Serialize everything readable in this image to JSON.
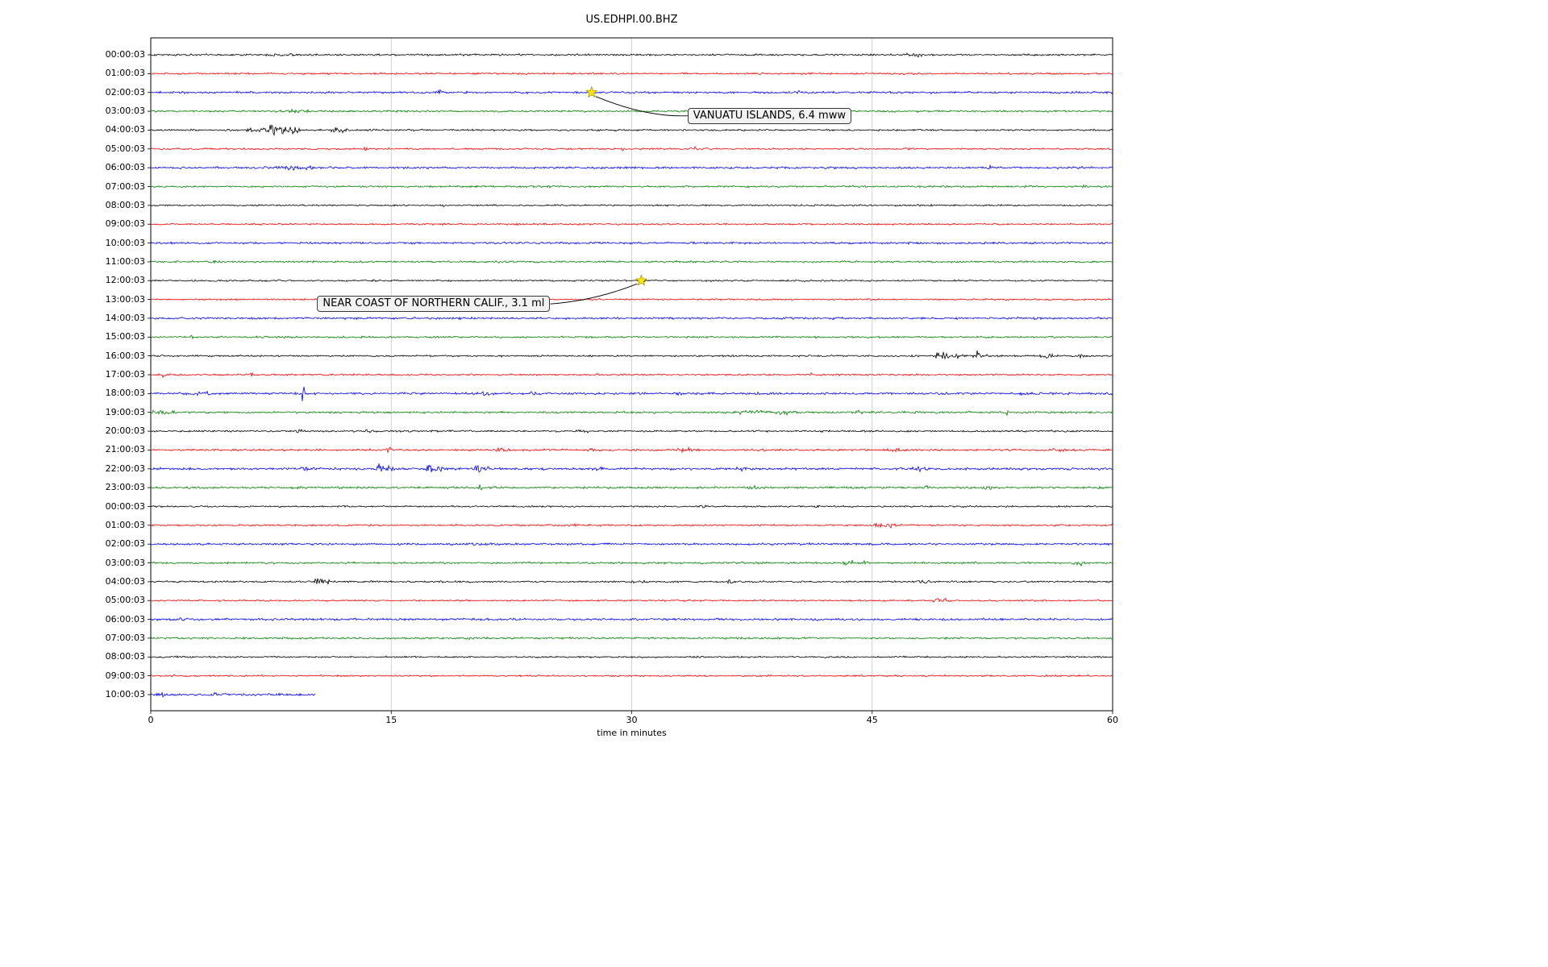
{
  "chart_data": {
    "type": "line",
    "subtype": "seismogram-helicorder",
    "title": "US.EDHPI.00.BHZ",
    "xlabel": "time in minutes",
    "xlim": [
      0,
      60
    ],
    "x_tick_values": [
      0,
      15,
      30,
      45,
      60
    ],
    "x_tick_labels": [
      "0",
      "15",
      "30",
      "45",
      "60"
    ],
    "grid": true,
    "trace_color_cycle": [
      "#000000",
      "#ff0000",
      "#0000ff",
      "#008000"
    ],
    "event_marker_color": "#ffe600",
    "rows": [
      {
        "label": "00:00:03",
        "color": "#000000",
        "base": 1.6,
        "bursts": [
          [
            8,
            1.2,
            1.2
          ],
          [
            35.2,
            0.12,
            2.5
          ],
          [
            47.7,
            0.6,
            2.2
          ]
        ]
      },
      {
        "label": "01:00:03",
        "color": "#ff0000",
        "base": 1.5,
        "bursts": [
          [
            56.2,
            0.15,
            2
          ]
        ]
      },
      {
        "label": "02:00:03",
        "color": "#0000ff",
        "base": 1.8,
        "bursts": [
          [
            18,
            0.2,
            2.5
          ],
          [
            27.6,
            0.2,
            1.5
          ],
          [
            40.3,
            0.12,
            3
          ]
        ]
      },
      {
        "label": "03:00:03",
        "color": "#008000",
        "base": 1.6,
        "bursts": [
          [
            8.8,
            0.5,
            2.5
          ],
          [
            9.6,
            0.3,
            2
          ],
          [
            21.8,
            0.15,
            2
          ]
        ]
      },
      {
        "label": "04:00:03",
        "color": "#000000",
        "base": 1.5,
        "bursts": [
          [
            6.2,
            0.3,
            3
          ],
          [
            7.5,
            0.5,
            10
          ],
          [
            8.2,
            0.3,
            8
          ],
          [
            9,
            0.4,
            6
          ],
          [
            11.5,
            0.25,
            10
          ],
          [
            12.1,
            0.2,
            5
          ],
          [
            13.8,
            0.2,
            3
          ]
        ]
      },
      {
        "label": "05:00:03",
        "color": "#ff0000",
        "base": 1.4,
        "bursts": [
          [
            13.4,
            0.12,
            3.5
          ],
          [
            29.5,
            0.12,
            2.5
          ],
          [
            34,
            0.15,
            2
          ],
          [
            47.2,
            0.2,
            2
          ]
        ]
      },
      {
        "label": "06:00:03",
        "color": "#0000ff",
        "base": 1.8,
        "bursts": [
          [
            8.6,
            0.6,
            3.2
          ],
          [
            9.7,
            0.35,
            2.8
          ],
          [
            52.3,
            0.25,
            2
          ]
        ]
      },
      {
        "label": "07:00:03",
        "color": "#008000",
        "base": 1.6,
        "bursts": [
          [
            22.2,
            0.2,
            1.8
          ],
          [
            58.3,
            0.15,
            2.5
          ]
        ]
      },
      {
        "label": "08:00:03",
        "color": "#000000",
        "base": 1.4,
        "bursts": [
          [
            18.2,
            0.15,
            1.8
          ]
        ]
      },
      {
        "label": "09:00:03",
        "color": "#ff0000",
        "base": 1.4,
        "bursts": []
      },
      {
        "label": "10:00:03",
        "color": "#0000ff",
        "base": 1.8,
        "bursts": []
      },
      {
        "label": "11:00:03",
        "color": "#008000",
        "base": 1.6,
        "bursts": [
          [
            4,
            0.2,
            1.8
          ]
        ]
      },
      {
        "label": "12:00:03",
        "color": "#000000",
        "base": 1.4,
        "bursts": [
          [
            30.7,
            0.15,
            1.8
          ]
        ]
      },
      {
        "label": "13:00:03",
        "color": "#ff0000",
        "base": 1.4,
        "bursts": []
      },
      {
        "label": "14:00:03",
        "color": "#0000ff",
        "base": 1.8,
        "bursts": []
      },
      {
        "label": "15:00:03",
        "color": "#008000",
        "base": 1.6,
        "bursts": [
          [
            2.5,
            0.2,
            1.8
          ]
        ]
      },
      {
        "label": "16:00:03",
        "color": "#000000",
        "base": 1.5,
        "bursts": [
          [
            22,
            0.2,
            2
          ],
          [
            49.3,
            0.35,
            8
          ],
          [
            50.2,
            0.5,
            4
          ],
          [
            51.6,
            0.3,
            8
          ],
          [
            52.2,
            0.2,
            4
          ],
          [
            55.9,
            0.4,
            2.5
          ],
          [
            58,
            0.3,
            2
          ]
        ]
      },
      {
        "label": "17:00:03",
        "color": "#ff0000",
        "base": 1.5,
        "bursts": [
          [
            0.8,
            0.15,
            4
          ],
          [
            6.3,
            0.15,
            2
          ],
          [
            27.9,
            0.12,
            3.5
          ],
          [
            41.2,
            0.15,
            2
          ]
        ]
      },
      {
        "label": "18:00:03",
        "color": "#0000ff",
        "base": 1.9,
        "bursts": [
          [
            3.2,
            0.5,
            2.8
          ],
          [
            9.5,
            0.1,
            13
          ],
          [
            20.9,
            0.4,
            3.2
          ],
          [
            24,
            0.3,
            2.4
          ],
          [
            33,
            0.3,
            2
          ],
          [
            54.6,
            0.3,
            2.4
          ]
        ]
      },
      {
        "label": "19:00:03",
        "color": "#008000",
        "base": 1.7,
        "bursts": [
          [
            0.4,
            0.4,
            5
          ],
          [
            1.1,
            0.35,
            4
          ],
          [
            37.3,
            0.8,
            2.8
          ],
          [
            39.6,
            0.5,
            3.2
          ],
          [
            44.2,
            0.25,
            2
          ],
          [
            53.4,
            0.12,
            4.5
          ]
        ]
      },
      {
        "label": "20:00:03",
        "color": "#000000",
        "base": 1.5,
        "bursts": [
          [
            9.3,
            0.25,
            2.2
          ],
          [
            13.6,
            0.25,
            1.8
          ],
          [
            27,
            0.3,
            1.6
          ]
        ]
      },
      {
        "label": "21:00:03",
        "color": "#ff0000",
        "base": 1.7,
        "bursts": [
          [
            14.9,
            0.15,
            4
          ],
          [
            22,
            0.5,
            3
          ],
          [
            27.5,
            0.3,
            2
          ],
          [
            33.6,
            0.7,
            2.4
          ],
          [
            38.2,
            0.25,
            2.4
          ],
          [
            46.5,
            0.7,
            2.4
          ],
          [
            56.6,
            0.4,
            2.4
          ]
        ]
      },
      {
        "label": "22:00:03",
        "color": "#0000ff",
        "base": 2.0,
        "bursts": [
          [
            9.6,
            0.4,
            2.8
          ],
          [
            14.3,
            0.25,
            8
          ],
          [
            14.9,
            0.15,
            10
          ],
          [
            17.4,
            0.2,
            12
          ],
          [
            18,
            0.15,
            10
          ],
          [
            20.5,
            0.25,
            10
          ],
          [
            21,
            0.15,
            6
          ],
          [
            28,
            0.4,
            2.4
          ],
          [
            36.8,
            0.3,
            2.4
          ],
          [
            48,
            0.4,
            2.2
          ]
        ]
      },
      {
        "label": "23:00:03",
        "color": "#008000",
        "base": 1.7,
        "bursts": [
          [
            20.6,
            0.12,
            6
          ],
          [
            37.6,
            0.4,
            2.4
          ],
          [
            48.4,
            0.15,
            2.4
          ],
          [
            52.2,
            0.3,
            2.2
          ]
        ]
      },
      {
        "label": "00:00:03",
        "color": "#000000",
        "base": 1.4,
        "bursts": [
          [
            34.6,
            0.2,
            2.8
          ],
          [
            41.6,
            0.15,
            1.8
          ]
        ]
      },
      {
        "label": "01:00:03",
        "color": "#ff0000",
        "base": 1.5,
        "bursts": [
          [
            7.1,
            0.12,
            3
          ],
          [
            26.6,
            0.15,
            1.8
          ],
          [
            45.2,
            0.5,
            2.8
          ],
          [
            46.2,
            0.25,
            4.5
          ]
        ]
      },
      {
        "label": "02:00:03",
        "color": "#0000ff",
        "base": 1.8,
        "bursts": [
          [
            20.3,
            0.25,
            4
          ],
          [
            21,
            0.2,
            3.2
          ]
        ]
      },
      {
        "label": "03:00:03",
        "color": "#008000",
        "base": 1.7,
        "bursts": [
          [
            43.6,
            0.5,
            3
          ],
          [
            44.6,
            0.25,
            2.4
          ],
          [
            58,
            0.4,
            3.2
          ],
          [
            58.8,
            0.25,
            2.8
          ]
        ]
      },
      {
        "label": "04:00:03",
        "color": "#000000",
        "base": 1.5,
        "bursts": [
          [
            10.5,
            0.3,
            9
          ],
          [
            11,
            0.15,
            5
          ],
          [
            30.4,
            0.3,
            2.8
          ],
          [
            36.1,
            0.2,
            2
          ],
          [
            48.1,
            0.5,
            2.6
          ],
          [
            50.6,
            0.25,
            2.2
          ]
        ]
      },
      {
        "label": "05:00:03",
        "color": "#ff0000",
        "base": 1.4,
        "bursts": [
          [
            49.3,
            0.4,
            2.8
          ]
        ]
      },
      {
        "label": "06:00:03",
        "color": "#0000ff",
        "base": 1.9,
        "bursts": [
          [
            2,
            0.4,
            1.8
          ]
        ]
      },
      {
        "label": "07:00:03",
        "color": "#008000",
        "base": 1.6,
        "bursts": []
      },
      {
        "label": "08:00:03",
        "color": "#000000",
        "base": 1.4,
        "bursts": [
          [
            1.5,
            0.25,
            1.8
          ]
        ]
      },
      {
        "label": "09:00:03",
        "color": "#ff0000",
        "base": 1.4,
        "bursts": []
      },
      {
        "label": "10:00:03",
        "color": "#0000ff",
        "base": 2.0,
        "end": 10.3,
        "bursts": [
          [
            0.8,
            0.5,
            2.2
          ],
          [
            4,
            0.4,
            1.8
          ]
        ]
      }
    ],
    "events": [
      {
        "label": "VANUATU ISLANDS, 6.4 mww",
        "row_index": 2,
        "x_minutes": 27.5
      },
      {
        "label": "NEAR COAST OF NORTHERN CALIF., 3.1 ml",
        "row_index": 12,
        "x_minutes": 30.6
      }
    ]
  }
}
